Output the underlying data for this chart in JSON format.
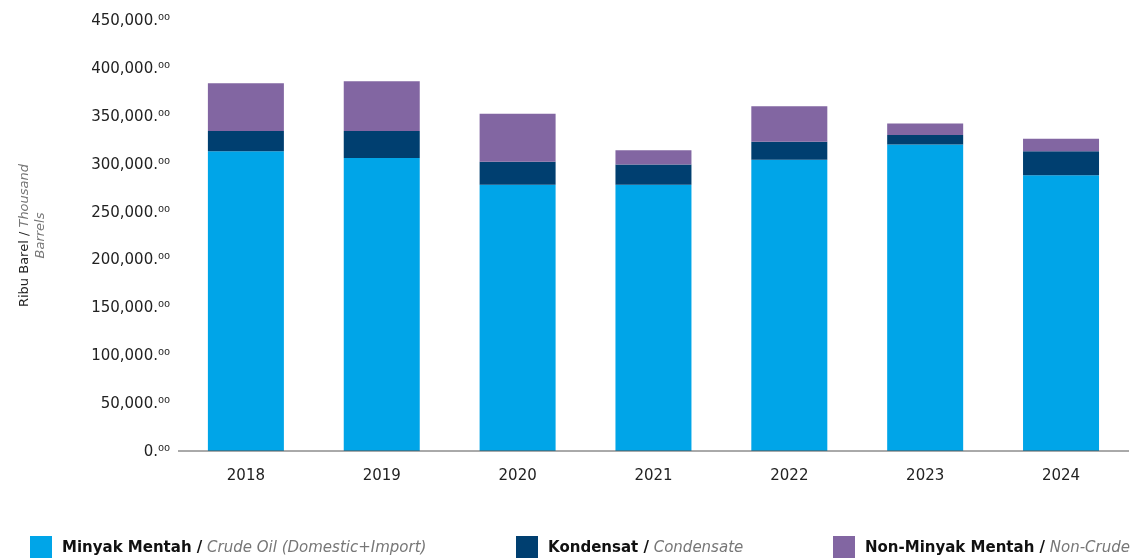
{
  "chart_data": {
    "type": "bar",
    "stacked": true,
    "ylabel": "Ribu Barel / Thousand Barrels",
    "categories": [
      "2018",
      "2019",
      "2020",
      "2021",
      "2022",
      "2023",
      "2024"
    ],
    "series": [
      {
        "name": "Minyak Mentah / Crude Oil (Domestic+Import)",
        "color": "#00a5e8",
        "values": [
          313000,
          306000,
          278000,
          278000,
          304000,
          320000,
          288000
        ]
      },
      {
        "name": "Kondensat / Condensate",
        "color": "#003f70",
        "values": [
          21000,
          28000,
          24000,
          21000,
          19000,
          10000,
          25000
        ]
      },
      {
        "name": "Non-Minyak Mentah / Non-Crude",
        "color": "#8266a2",
        "values": [
          50000,
          52000,
          50000,
          15000,
          37000,
          12000,
          13000
        ]
      }
    ],
    "ylim": [
      0,
      450000
    ],
    "yticks": [
      {
        "value": 0,
        "label": "0.⁰⁰"
      },
      {
        "value": 50000,
        "label": "50,000.⁰⁰"
      },
      {
        "value": 100000,
        "label": "100,000.⁰⁰"
      },
      {
        "value": 150000,
        "label": "150,000.⁰⁰"
      },
      {
        "value": 200000,
        "label": "200,000.⁰⁰"
      },
      {
        "value": 250000,
        "label": "250,000.⁰⁰"
      },
      {
        "value": 300000,
        "label": "300,000.⁰⁰"
      },
      {
        "value": 350000,
        "label": "350,000.⁰⁰"
      },
      {
        "value": 400000,
        "label": "400,000.⁰⁰"
      },
      {
        "value": 450000,
        "label": "450,000.⁰⁰"
      }
    ],
    "grid": false,
    "legend": "bottom"
  }
}
